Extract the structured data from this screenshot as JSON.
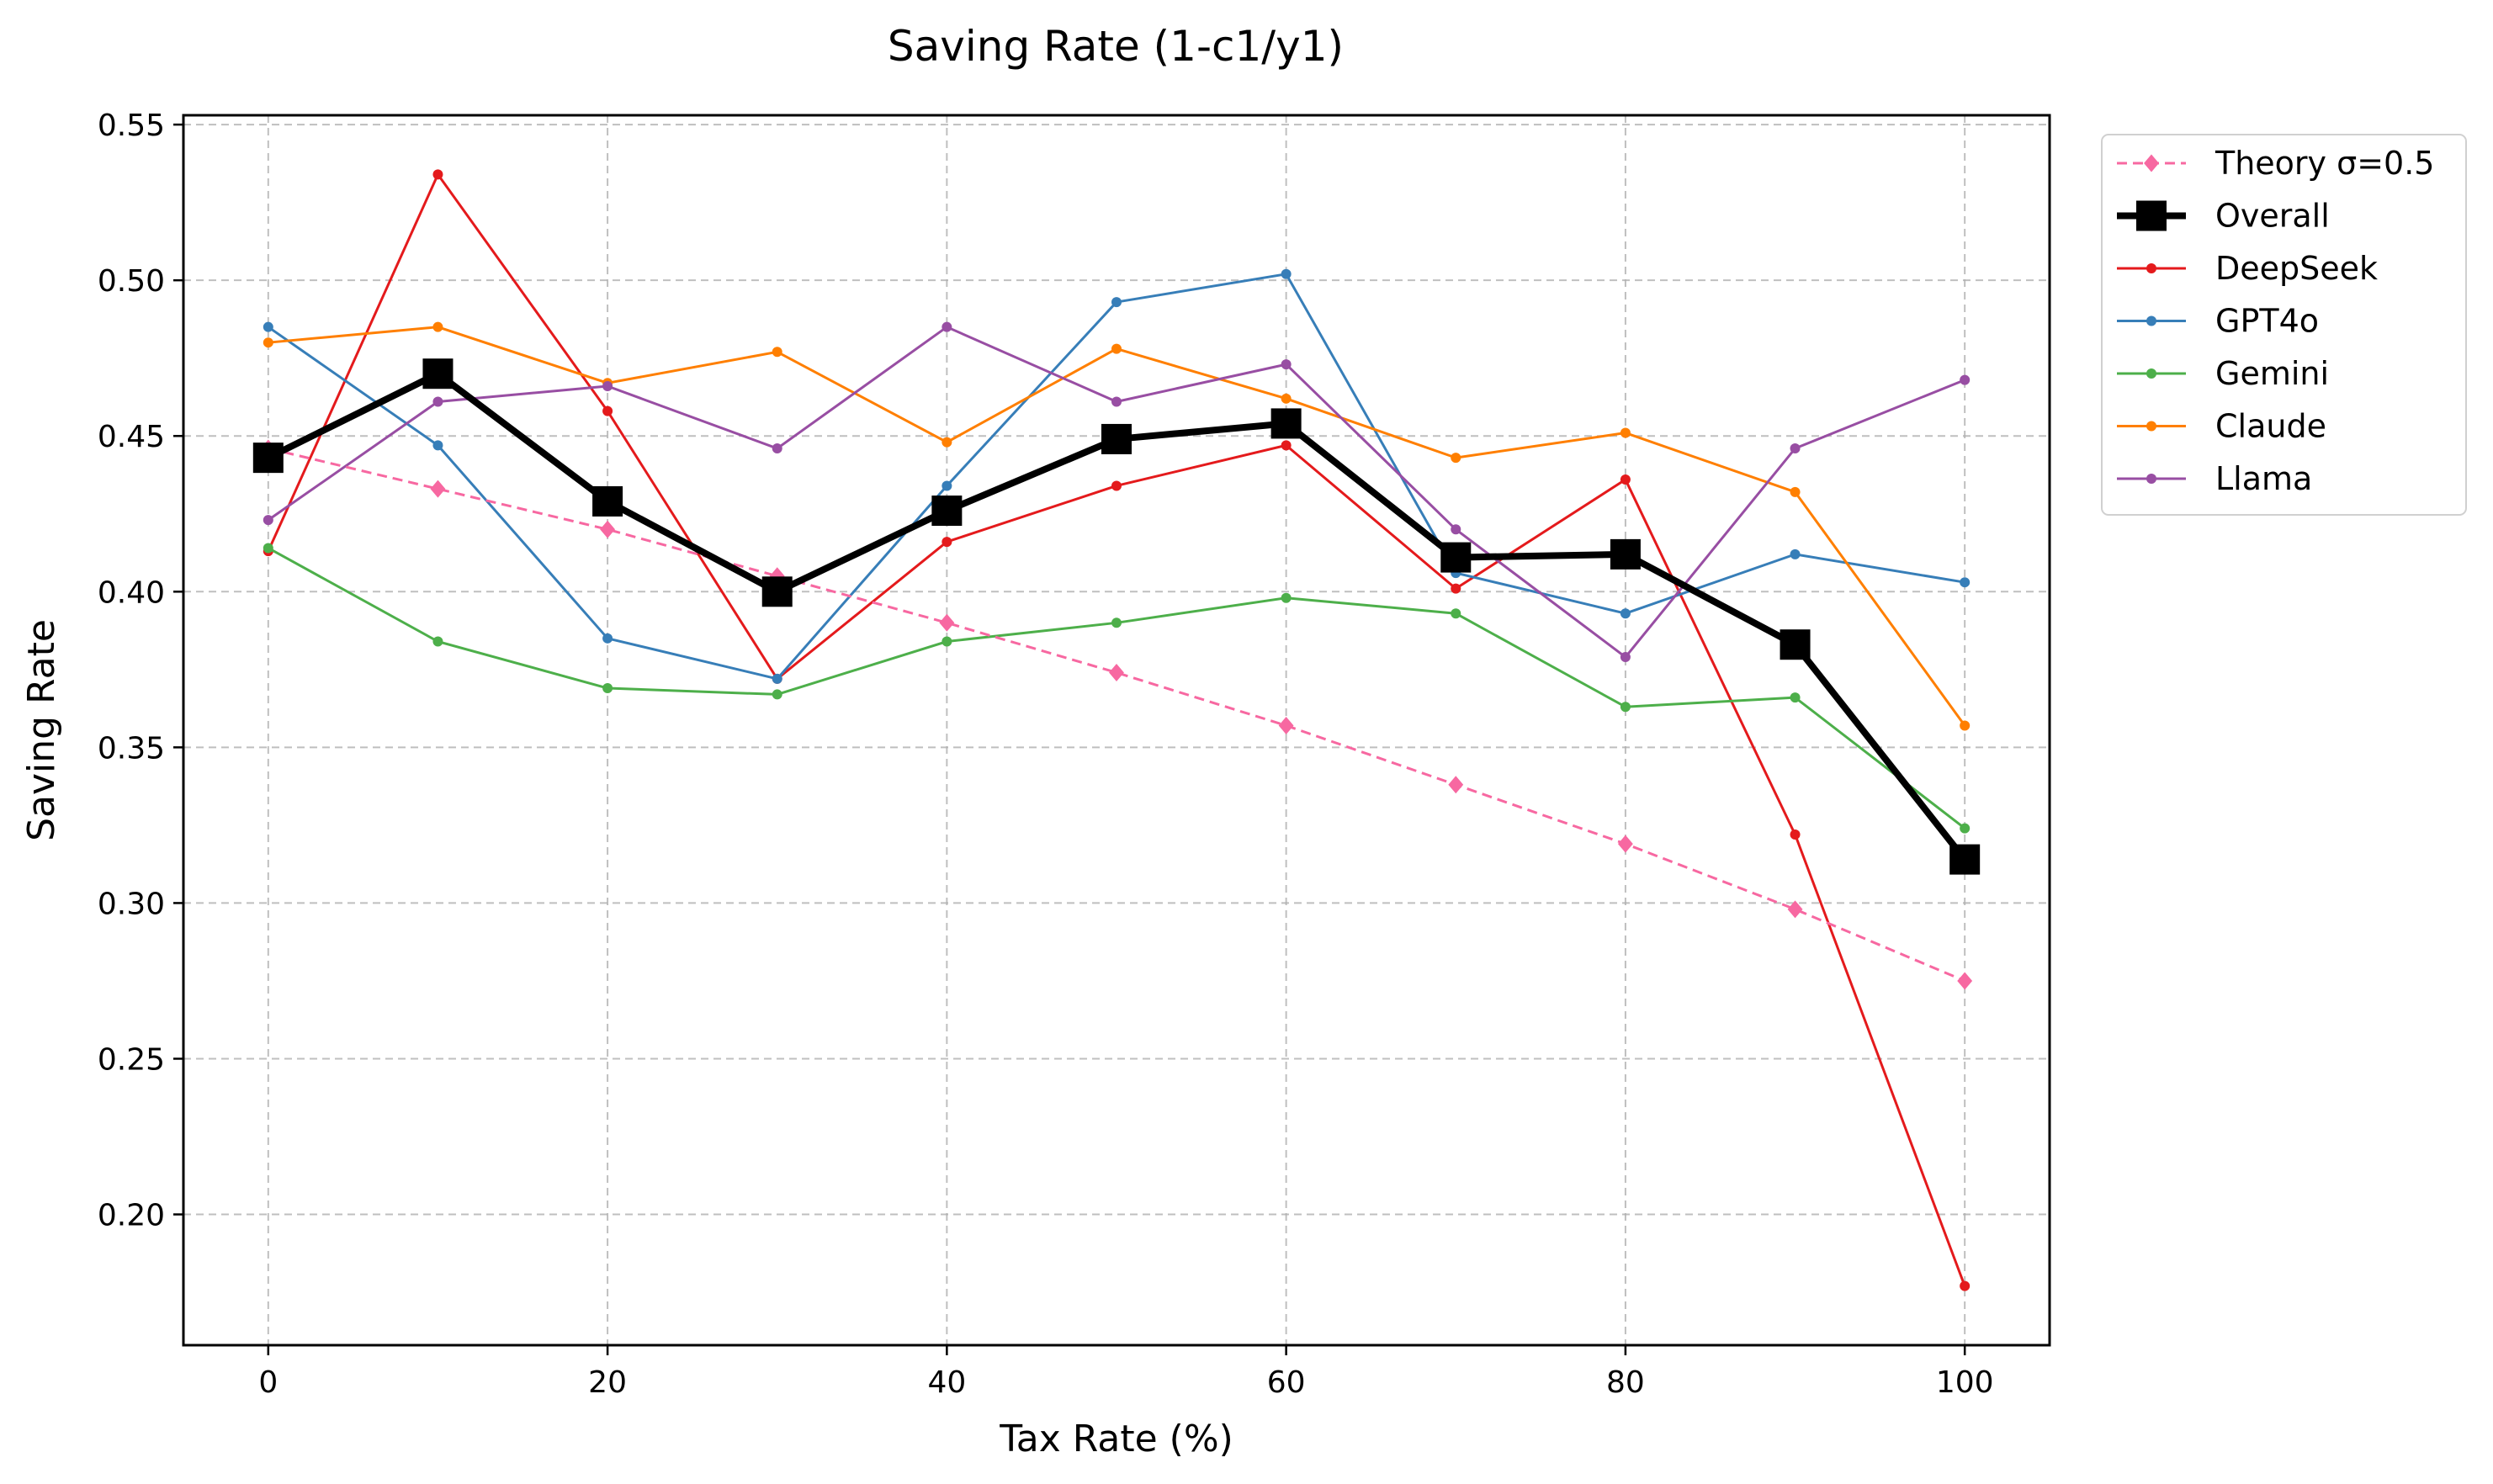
{
  "chart_data": {
    "type": "line",
    "title": "Saving Rate (1-c1/y1)",
    "xlabel": "Tax Rate (%)",
    "ylabel": "Saving Rate",
    "x": [
      0,
      10,
      20,
      30,
      40,
      50,
      60,
      70,
      80,
      90,
      100
    ],
    "xticks": [
      "0",
      "20",
      "40",
      "60",
      "80",
      "100"
    ],
    "yticks": [
      "0.20",
      "0.25",
      "0.30",
      "0.35",
      "0.40",
      "0.45",
      "0.50",
      "0.55"
    ],
    "xlim": [
      -5,
      105
    ],
    "ylim": [
      0.158,
      0.553
    ],
    "grid": true,
    "legend_position": "outside-right-top",
    "series": [
      {
        "name": "Theory σ=0.5",
        "color": "#f768a1",
        "style": "dashed",
        "marker": "diamond",
        "values": [
          0.446,
          0.433,
          0.42,
          0.405,
          0.39,
          0.374,
          0.357,
          0.338,
          0.319,
          0.298,
          0.275
        ]
      },
      {
        "name": "Overall",
        "color": "#000000",
        "style": "bold",
        "marker": "square",
        "values": [
          0.443,
          0.47,
          0.429,
          0.4,
          0.426,
          0.449,
          0.454,
          0.411,
          0.412,
          0.383,
          0.314
        ]
      },
      {
        "name": "DeepSeek",
        "color": "#e41a1c",
        "style": "solid",
        "marker": "dot",
        "values": [
          0.413,
          0.534,
          0.458,
          0.372,
          0.416,
          0.434,
          0.447,
          0.401,
          0.436,
          0.322,
          0.177
        ]
      },
      {
        "name": "GPT4o",
        "color": "#377eb8",
        "style": "solid",
        "marker": "dot",
        "values": [
          0.485,
          0.447,
          0.385,
          0.372,
          0.434,
          0.493,
          0.502,
          0.406,
          0.393,
          0.412,
          0.403
        ]
      },
      {
        "name": "Gemini",
        "color": "#4daf4a",
        "style": "solid",
        "marker": "dot",
        "values": [
          0.414,
          0.384,
          0.369,
          0.367,
          0.384,
          0.39,
          0.398,
          0.393,
          0.363,
          0.366,
          0.324
        ]
      },
      {
        "name": "Claude",
        "color": "#ff7f00",
        "style": "solid",
        "marker": "dot",
        "values": [
          0.48,
          0.485,
          0.467,
          0.477,
          0.448,
          0.478,
          0.462,
          0.443,
          0.451,
          0.432,
          0.357
        ]
      },
      {
        "name": "Llama",
        "color": "#984ea3",
        "style": "solid",
        "marker": "dot",
        "values": [
          0.423,
          0.461,
          0.466,
          0.446,
          0.485,
          0.461,
          0.473,
          0.42,
          0.379,
          0.446,
          0.468
        ]
      }
    ]
  }
}
